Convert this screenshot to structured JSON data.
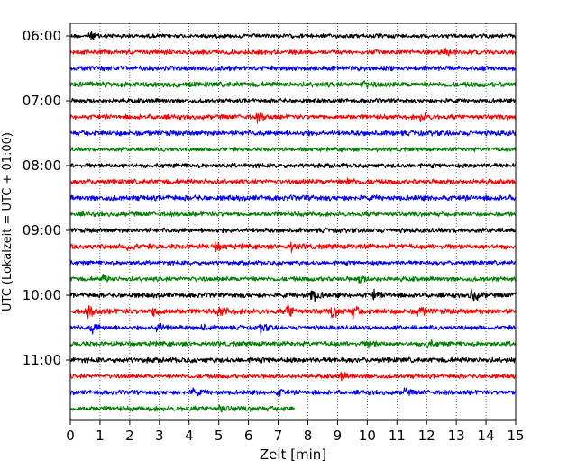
{
  "chart_data": {
    "type": "line",
    "title": "",
    "xlabel": "Zeit  [min]",
    "ylabel": "UTC (Lokalzeit = UTC + 01:00)",
    "xlim": [
      0,
      15
    ],
    "x_ticks": [
      0,
      1,
      2,
      3,
      4,
      5,
      6,
      7,
      8,
      9,
      10,
      11,
      12,
      13,
      14,
      15
    ],
    "y_tick_labels": [
      "06:00",
      "07:00",
      "08:00",
      "09:00",
      "10:00",
      "11:00"
    ],
    "y_tick_rows": [
      0,
      4,
      8,
      12,
      16,
      20
    ],
    "grid": "vertical dotted",
    "colors": [
      "#000000",
      "#ff0000",
      "#0000ff",
      "#008000"
    ],
    "trace_count": 24,
    "last_trace_end_min": 7.55,
    "events": [
      {
        "row": 0,
        "t": 0.65,
        "amp": 1.6
      },
      {
        "row": 1,
        "t": 12.6,
        "amp": 1.5
      },
      {
        "row": 3,
        "t": 9.8,
        "amp": 1.3
      },
      {
        "row": 5,
        "t": 6.3,
        "amp": 1.5
      },
      {
        "row": 5,
        "t": 11.8,
        "amp": 1.5
      },
      {
        "row": 9,
        "t": 9.3,
        "amp": 1.3
      },
      {
        "row": 13,
        "t": 1.9,
        "amp": 1.4
      },
      {
        "row": 13,
        "t": 4.9,
        "amp": 1.3
      },
      {
        "row": 13,
        "t": 7.4,
        "amp": 1.4
      },
      {
        "row": 15,
        "t": 1.1,
        "amp": 1.4
      },
      {
        "row": 15,
        "t": 9.7,
        "amp": 1.4
      },
      {
        "row": 16,
        "t": 8.1,
        "amp": 3.0
      },
      {
        "row": 16,
        "t": 10.2,
        "amp": 1.8
      },
      {
        "row": 16,
        "t": 13.5,
        "amp": 3.0
      },
      {
        "row": 17,
        "t": 0.6,
        "amp": 2.0
      },
      {
        "row": 17,
        "t": 2.8,
        "amp": 1.8
      },
      {
        "row": 17,
        "t": 5.0,
        "amp": 2.0
      },
      {
        "row": 17,
        "t": 7.3,
        "amp": 2.6
      },
      {
        "row": 17,
        "t": 8.8,
        "amp": 2.0
      },
      {
        "row": 17,
        "t": 9.5,
        "amp": 2.2
      },
      {
        "row": 17,
        "t": 11.7,
        "amp": 2.2
      },
      {
        "row": 18,
        "t": 0.7,
        "amp": 2.2
      },
      {
        "row": 18,
        "t": 2.9,
        "amp": 2.2
      },
      {
        "row": 18,
        "t": 6.4,
        "amp": 2.0
      },
      {
        "row": 18,
        "t": 4.4,
        "amp": 1.3
      },
      {
        "row": 19,
        "t": 12.0,
        "amp": 1.6
      },
      {
        "row": 19,
        "t": 10.0,
        "amp": 1.3
      },
      {
        "row": 21,
        "t": 9.1,
        "amp": 1.3
      },
      {
        "row": 22,
        "t": 4.1,
        "amp": 1.5
      },
      {
        "row": 22,
        "t": 11.2,
        "amp": 1.4
      },
      {
        "row": 22,
        "t": 7.0,
        "amp": 1.2
      },
      {
        "row": 23,
        "t": 5.0,
        "amp": 1.2
      }
    ]
  }
}
